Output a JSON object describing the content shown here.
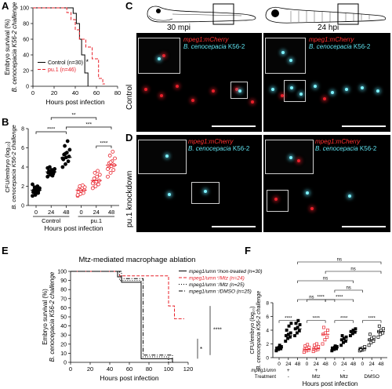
{
  "panels": {
    "A": "A",
    "B": "B",
    "C": "C",
    "D": "D",
    "E": "E",
    "F": "F"
  },
  "panelC": {
    "time_left": "30 mpi",
    "time_right": "24 hpi",
    "row_label": "Control",
    "label_red": "mpeg1:mCherry",
    "label_cyan_italic": "B. cenocepacia",
    "label_cyan_strain": " K56-2"
  },
  "panelD": {
    "row_label": "pu.1 knockdown",
    "label_red": "mpeg1:mCherry",
    "label_cyan_italic": "B. cenocepacia",
    "label_cyan_strain": " K56-2"
  },
  "chart_data": [
    {
      "panel": "A",
      "type": "line",
      "subtype": "kaplan-meier",
      "xlabel": "Hours post infection",
      "ylabel_line1": "Embryo survival (%)",
      "ylabel_line2": "B. cenocepacia K56-2 challenge",
      "xlim": [
        0,
        80
      ],
      "ylim": [
        0,
        100
      ],
      "xticks": [
        "0",
        "20",
        "40",
        "60",
        "80"
      ],
      "yticks": [
        "0",
        "20",
        "40",
        "60",
        "80",
        "100"
      ],
      "series": [
        {
          "name": "Control (n=30)",
          "color": "#000000",
          "dash": false,
          "x": [
            0,
            38,
            38,
            41,
            41,
            44,
            44,
            46,
            46,
            49,
            49,
            52,
            52
          ],
          "y": [
            100,
            100,
            93,
            93,
            80,
            80,
            60,
            60,
            40,
            40,
            17,
            17,
            0
          ]
        },
        {
          "name": "pu.1 (n=46)",
          "color": "#e8202a",
          "dash": true,
          "x": [
            0,
            32,
            32,
            36,
            36,
            40,
            40,
            44,
            44,
            50,
            50,
            56,
            56,
            62,
            62,
            66,
            66,
            68
          ],
          "y": [
            100,
            100,
            94,
            94,
            85,
            85,
            72,
            72,
            60,
            60,
            50,
            50,
            35,
            35,
            10,
            10,
            3,
            3
          ]
        }
      ],
      "annotation": "*"
    },
    {
      "panel": "B",
      "type": "scatter",
      "ylabel_line1": "CFU/embryo (log₁₀)",
      "ylabel_line2": "B. cenocepacia K56-2 challenge",
      "xlabel": "Hours post infection",
      "ylim": [
        0,
        8
      ],
      "yticks": [
        "0",
        "2",
        "4",
        "6",
        "8"
      ],
      "xticks": [
        "0",
        "24",
        "48",
        "0",
        "24",
        "48"
      ],
      "group_labels": [
        "Control",
        "pu.1"
      ],
      "series": [
        {
          "name": "Control",
          "color": "#000000",
          "filled": true,
          "groups": [
            {
              "x": "0",
              "median": 1.6,
              "values": [
                1.0,
                1.2,
                1.3,
                1.4,
                1.5,
                1.6,
                1.6,
                1.7,
                1.8,
                1.9,
                2.0,
                2.2,
                1.1,
                1.5
              ]
            },
            {
              "x": "24",
              "median": 3.5,
              "values": [
                3.0,
                3.2,
                3.3,
                3.4,
                3.5,
                3.5,
                3.6,
                3.7,
                3.8,
                4.0,
                3.1,
                3.9
              ]
            },
            {
              "x": "48",
              "median": 5.0,
              "values": [
                4.0,
                4.3,
                4.6,
                4.8,
                5.0,
                5.1,
                5.3,
                5.5,
                5.8,
                6.2,
                6.7,
                4.9,
                5.4
              ]
            }
          ]
        },
        {
          "name": "pu.1",
          "color": "#e8202a",
          "filled": false,
          "groups": [
            {
              "x": "0",
              "median": 1.6,
              "values": [
                1.0,
                1.2,
                1.3,
                1.4,
                1.5,
                1.6,
                1.7,
                1.8,
                1.9,
                2.0,
                2.1,
                1.1,
                1.6
              ]
            },
            {
              "x": "24",
              "median": 2.6,
              "values": [
                1.8,
                2.0,
                2.2,
                2.4,
                2.5,
                2.6,
                2.8,
                3.0,
                3.2,
                3.4,
                3.6,
                2.3
              ]
            },
            {
              "x": "48",
              "median": 4.2,
              "values": [
                3.0,
                3.4,
                3.7,
                3.9,
                4.1,
                4.2,
                4.4,
                4.6,
                4.9,
                5.2,
                5.6,
                3.8,
                4.5
              ]
            }
          ]
        }
      ],
      "brackets": [
        {
          "from": 0,
          "to": 2,
          "label": "****"
        },
        {
          "from": 2,
          "to": 5,
          "label": "***"
        },
        {
          "from": 1,
          "to": 4,
          "label": "**"
        },
        {
          "from": 4,
          "to": 5,
          "label": "****"
        }
      ]
    },
    {
      "panel": "E",
      "type": "line",
      "subtype": "kaplan-meier",
      "title": "Mtz-mediated macrophage ablation",
      "xlabel": "Hours post infection",
      "ylabel_line1": "Embryo survival (%)",
      "ylabel_line2": "B. cenocepacia K56-2 challenge",
      "xlim": [
        0,
        120
      ],
      "ylim": [
        0,
        100
      ],
      "xticks": [
        "0",
        "20",
        "40",
        "60",
        "80",
        "100",
        "120"
      ],
      "yticks": [
        "0",
        "10",
        "20",
        "30",
        "40",
        "50",
        "60",
        "70",
        "80",
        "90",
        "100"
      ],
      "series": [
        {
          "name": "mpeg1/umn⁺/non-treated (n=30)",
          "color": "#000000",
          "dash": false,
          "x": [
            0,
            48,
            48,
            52,
            52,
            72,
            72,
            104,
            104
          ],
          "y": [
            100,
            100,
            94,
            94,
            88,
            88,
            4,
            4,
            0
          ]
        },
        {
          "name": "mpeg1/umn⁺/Mtz (n=24)",
          "color": "#e8202a",
          "dash": true,
          "x": [
            0,
            50,
            50,
            100,
            100,
            106,
            106,
            116
          ],
          "y": [
            100,
            100,
            95,
            95,
            62,
            62,
            48,
            48
          ]
        },
        {
          "name": "mpeg1/umn⁻/Mtz (n=25)",
          "color": "#000000",
          "dash": "dot",
          "x": [
            0,
            50,
            50,
            72,
            72,
            100,
            100,
            106
          ],
          "y": [
            100,
            100,
            90,
            90,
            6,
            6,
            0,
            0
          ]
        },
        {
          "name": "mpeg1/umn⁻/DMSO (n=25)",
          "color": "#000000",
          "dash": "dashdot",
          "x": [
            0,
            52,
            52,
            74,
            74,
            104,
            104
          ],
          "y": [
            100,
            100,
            92,
            92,
            8,
            8,
            0
          ]
        }
      ],
      "annotations": [
        "****",
        "*"
      ]
    },
    {
      "panel": "F",
      "type": "scatter",
      "ylabel_line1": "CFU/embryo (log₁₀)",
      "ylabel_line2": "B. cenocepacia K56-2 challenge",
      "xlabel": "Hours post infection",
      "ylim": [
        0,
        8
      ],
      "yticks": [
        "0",
        "2",
        "4",
        "6",
        "8"
      ],
      "xticks": [
        "0",
        "24",
        "48",
        "0",
        "24",
        "48",
        "0",
        "24",
        "48",
        "0",
        "24",
        "48"
      ],
      "row1_label": "mpeg1/umn",
      "row2_label": "Treatment",
      "row1_values": [
        "+",
        "+",
        "-",
        "-"
      ],
      "row2_values": [
        "-",
        "Mtz",
        "Mtz",
        "DMSO"
      ],
      "groups": [
        {
          "color": "#000000",
          "shape": "square",
          "filled": true,
          "medians": [
            1.4,
            3.2,
            4.2
          ],
          "values": [
            [
              1.0,
              1.2,
              1.3,
              1.4,
              1.5,
              1.6,
              1.2,
              1.8
            ],
            [
              2.4,
              2.8,
              3.0,
              3.2,
              3.4,
              3.6,
              4.0,
              4.6,
              5.0
            ],
            [
              3.2,
              3.6,
              3.9,
              4.2,
              4.4,
              4.8,
              5.0,
              5.4
            ]
          ]
        },
        {
          "color": "#e8202a",
          "shape": "square",
          "filled": false,
          "medians": [
            1.2,
            1.3,
            3.4
          ],
          "values": [
            [
              0.8,
              1.0,
              1.1,
              1.2,
              1.3,
              1.5,
              1.7,
              1.9
            ],
            [
              0.9,
              1.1,
              1.2,
              1.3,
              1.4,
              1.6,
              1.8,
              2.0
            ],
            [
              2.0,
              2.6,
              3.0,
              3.4,
              3.6,
              4.0,
              4.4
            ]
          ]
        },
        {
          "color": "#000000",
          "shape": "square",
          "filled": true,
          "medians": [
            1.4,
            2.6,
            3.8
          ],
          "values": [
            [
              1.0,
              1.2,
              1.3,
              1.4,
              1.5,
              1.6,
              1.3,
              1.7
            ],
            [
              1.8,
              2.2,
              2.4,
              2.6,
              2.8,
              3.0,
              3.2
            ],
            [
              3.2,
              3.5,
              3.7,
              3.8,
              4.0,
              4.2
            ]
          ]
        },
        {
          "color": "#000000",
          "shape": "square",
          "filled": false,
          "medians": [
            1.3,
            2.6,
            3.8
          ],
          "values": [
            [
              1.0,
              1.1,
              1.2,
              1.3,
              1.4,
              1.6,
              1.2
            ],
            [
              1.8,
              2.2,
              2.4,
              2.6,
              2.8,
              3.0,
              3.4
            ],
            [
              3.0,
              3.4,
              3.6,
              3.8,
              4.0,
              4.2,
              4.6
            ]
          ]
        }
      ],
      "brackets": [
        {
          "from": 0,
          "to": 2,
          "label": "****",
          "level": 0
        },
        {
          "from": 3,
          "to": 5,
          "label": "****",
          "level": 0
        },
        {
          "from": 6,
          "to": 8,
          "label": "****",
          "level": 0
        },
        {
          "from": 9,
          "to": 11,
          "label": "****",
          "level": 0
        },
        {
          "from": 2,
          "to": 5,
          "label": "ns",
          "level": 1
        },
        {
          "from": 3,
          "to": 6,
          "label": "****",
          "level": 1
        },
        {
          "from": 5,
          "to": 8,
          "label": "****",
          "level": 1
        },
        {
          "from": 6,
          "to": 9,
          "label": "ns",
          "level": 2
        },
        {
          "from": 2,
          "to": 8,
          "label": "ns",
          "level": 3
        },
        {
          "from": 5,
          "to": 11,
          "label": "ns",
          "level": 4
        },
        {
          "from": 2,
          "to": 11,
          "label": "ns",
          "level": 5
        }
      ]
    }
  ]
}
